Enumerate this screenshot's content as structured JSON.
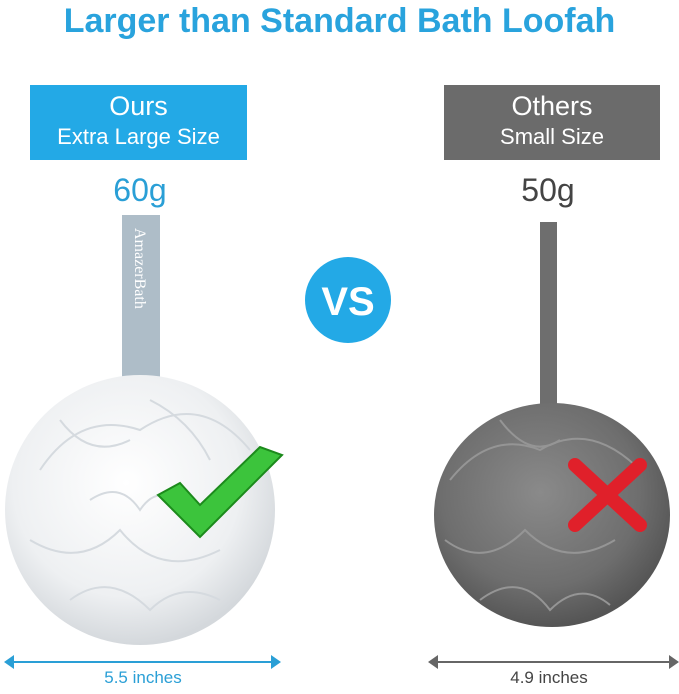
{
  "title": "Larger than Standard Bath Loofah",
  "ours": {
    "label": "Ours",
    "size": "Extra Large Size",
    "weight": "60g",
    "width": "5.5 inches",
    "brand": "AmazerBath",
    "color": "#23a9e6",
    "verdict_icon": "green-checkmark"
  },
  "others": {
    "label": "Others",
    "size": "Small Size",
    "weight": "50g",
    "width": "4.9 inches",
    "color": "#6b6b6b",
    "verdict_icon": "red-x"
  },
  "vs": "VS"
}
